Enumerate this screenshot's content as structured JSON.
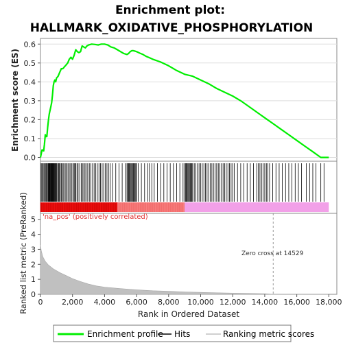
{
  "chart_data": {
    "type": "line",
    "title_line1": "Enrichment plot:",
    "title_line2": "HALLMARK_OXIDATIVE_PHOSPHORYLATION",
    "ylabel_top": "Enrichment score (ES)",
    "ylabel_bottom": "Ranked list metric (PreRanked)",
    "xlabel": "Rank in Ordered Dataset",
    "xlim": [
      0,
      18500
    ],
    "es_ylim": [
      -0.02,
      0.63
    ],
    "metric_ylim": [
      0,
      5.4
    ],
    "x_ticks": [
      0,
      2000,
      4000,
      6000,
      8000,
      10000,
      12000,
      14000,
      16000,
      18000
    ],
    "x_tick_labels": [
      "0",
      "2,000",
      "4,000",
      "6,000",
      "8,000",
      "10,000",
      "12,000",
      "14,000",
      "16,000",
      "18,000"
    ],
    "es_y_ticks": [
      0.0,
      0.1,
      0.2,
      0.3,
      0.4,
      0.5,
      0.6
    ],
    "es_y_tick_labels": [
      "0.0",
      "0.1",
      "0.2",
      "0.3",
      "0.4",
      "0.5",
      "0.6"
    ],
    "metric_y_ticks": [
      0,
      1,
      2,
      3,
      4,
      5
    ],
    "metric_y_tick_labels": [
      "0",
      "1",
      "2",
      "3",
      "4",
      "5"
    ],
    "enrichment_profile": {
      "name": "Enrichment profile",
      "color": "#00ee00",
      "x": [
        0,
        100,
        200,
        250,
        300,
        350,
        400,
        450,
        500,
        550,
        600,
        650,
        700,
        750,
        800,
        850,
        900,
        950,
        1000,
        1100,
        1200,
        1300,
        1400,
        1500,
        1600,
        1700,
        1800,
        1900,
        2000,
        2100,
        2200,
        2300,
        2400,
        2500,
        2600,
        2700,
        2800,
        2900,
        3000,
        3200,
        3400,
        3600,
        3800,
        4000,
        4200,
        4400,
        4600,
        4800,
        5000,
        5200,
        5400,
        5500,
        5600,
        5700,
        5800,
        5900,
        6000,
        6200,
        6400,
        6600,
        6800,
        7000,
        7500,
        8000,
        8500,
        9000,
        9500,
        10000,
        10500,
        11000,
        11500,
        12000,
        12500,
        13000,
        13500,
        14000,
        14500,
        15000,
        15500,
        16000,
        16500,
        17000,
        17500,
        18000
      ],
      "y": [
        0.0,
        0.04,
        0.035,
        0.07,
        0.12,
        0.11,
        0.11,
        0.16,
        0.2,
        0.23,
        0.25,
        0.27,
        0.29,
        0.33,
        0.38,
        0.4,
        0.41,
        0.4,
        0.42,
        0.43,
        0.45,
        0.47,
        0.47,
        0.48,
        0.49,
        0.5,
        0.52,
        0.53,
        0.52,
        0.54,
        0.57,
        0.56,
        0.555,
        0.56,
        0.59,
        0.585,
        0.58,
        0.59,
        0.595,
        0.6,
        0.598,
        0.595,
        0.6,
        0.6,
        0.595,
        0.585,
        0.58,
        0.57,
        0.56,
        0.55,
        0.545,
        0.55,
        0.56,
        0.565,
        0.565,
        0.563,
        0.56,
        0.552,
        0.545,
        0.535,
        0.528,
        0.52,
        0.505,
        0.485,
        0.46,
        0.44,
        0.43,
        0.41,
        0.39,
        0.365,
        0.345,
        0.325,
        0.3,
        0.27,
        0.24,
        0.21,
        0.18,
        0.15,
        0.12,
        0.09,
        0.06,
        0.03,
        0.0,
        0.0
      ]
    },
    "hits": {
      "name": "Hits",
      "color": "#000000",
      "x": [
        40,
        90,
        150,
        210,
        260,
        310,
        360,
        420,
        470,
        500,
        530,
        560,
        590,
        620,
        650,
        680,
        710,
        740,
        770,
        800,
        830,
        860,
        900,
        940,
        980,
        1020,
        1080,
        1130,
        1180,
        1240,
        1300,
        1360,
        1420,
        1500,
        1580,
        1650,
        1720,
        1800,
        1880,
        1960,
        2040,
        2100,
        2150,
        2200,
        2280,
        2350,
        2450,
        2550,
        2620,
        2700,
        2780,
        2850,
        2950,
        3050,
        3150,
        3250,
        3350,
        3450,
        3550,
        3650,
        3750,
        3850,
        3950,
        4050,
        4150,
        4250,
        4350,
        4500,
        4700,
        4900,
        5100,
        5300,
        5400,
        5450,
        5500,
        5550,
        5600,
        5650,
        5700,
        5750,
        5800,
        5850,
        5900,
        5950,
        6000,
        6100,
        6300,
        6500,
        6700,
        6800,
        6950,
        7100,
        7300,
        7500,
        7700,
        7900,
        8100,
        8300,
        8500,
        8700,
        8900,
        9000,
        9050,
        9100,
        9150,
        9200,
        9250,
        9300,
        9350,
        9400,
        9450,
        9500,
        9600,
        9700,
        9800,
        9900,
        10000,
        10100,
        10200,
        10300,
        10400,
        10500,
        10600,
        10700,
        10800,
        10900,
        11000,
        11100,
        11200,
        11300,
        11400,
        11500,
        11600,
        11700,
        11800,
        11900,
        12000,
        12100,
        12300,
        12500,
        12700,
        12900,
        13100,
        13300,
        13500,
        13600,
        13700,
        13800,
        13900,
        14000,
        14100,
        14200,
        14300,
        14500,
        14700,
        14900,
        15100,
        15300,
        15500,
        15700,
        15900,
        16100,
        16300,
        16600,
        16800,
        17000,
        17200,
        17500,
        17700
      ]
    },
    "ranking_metric": {
      "name": "Ranking metric scores",
      "color": "#c0c0c0",
      "x": [
        0,
        50,
        150,
        300,
        500,
        800,
        1200,
        1600,
        2000,
        2500,
        3000,
        3500,
        4000,
        5000,
        6000,
        7000,
        8000,
        9000,
        10000,
        11000,
        12000,
        13000,
        14000,
        14529,
        15000,
        16000,
        17000,
        18000
      ],
      "y": [
        3.3,
        2.9,
        2.5,
        2.2,
        1.95,
        1.7,
        1.45,
        1.25,
        1.05,
        0.85,
        0.68,
        0.56,
        0.48,
        0.38,
        0.3,
        0.24,
        0.2,
        0.16,
        0.13,
        0.1,
        0.08,
        0.06,
        0.04,
        0.0,
        0.0,
        0.0,
        0.0,
        0.0
      ]
    },
    "zero_cross": 14529,
    "zero_cross_label": "Zero cross at 14529",
    "pos_label": "'na_pos' (positively correlated)",
    "heat_colors": {
      "strong": "#ee1111",
      "mid": "#f88080",
      "weak": "#f2a0e8"
    },
    "legend": {
      "placement": "bottom"
    }
  }
}
